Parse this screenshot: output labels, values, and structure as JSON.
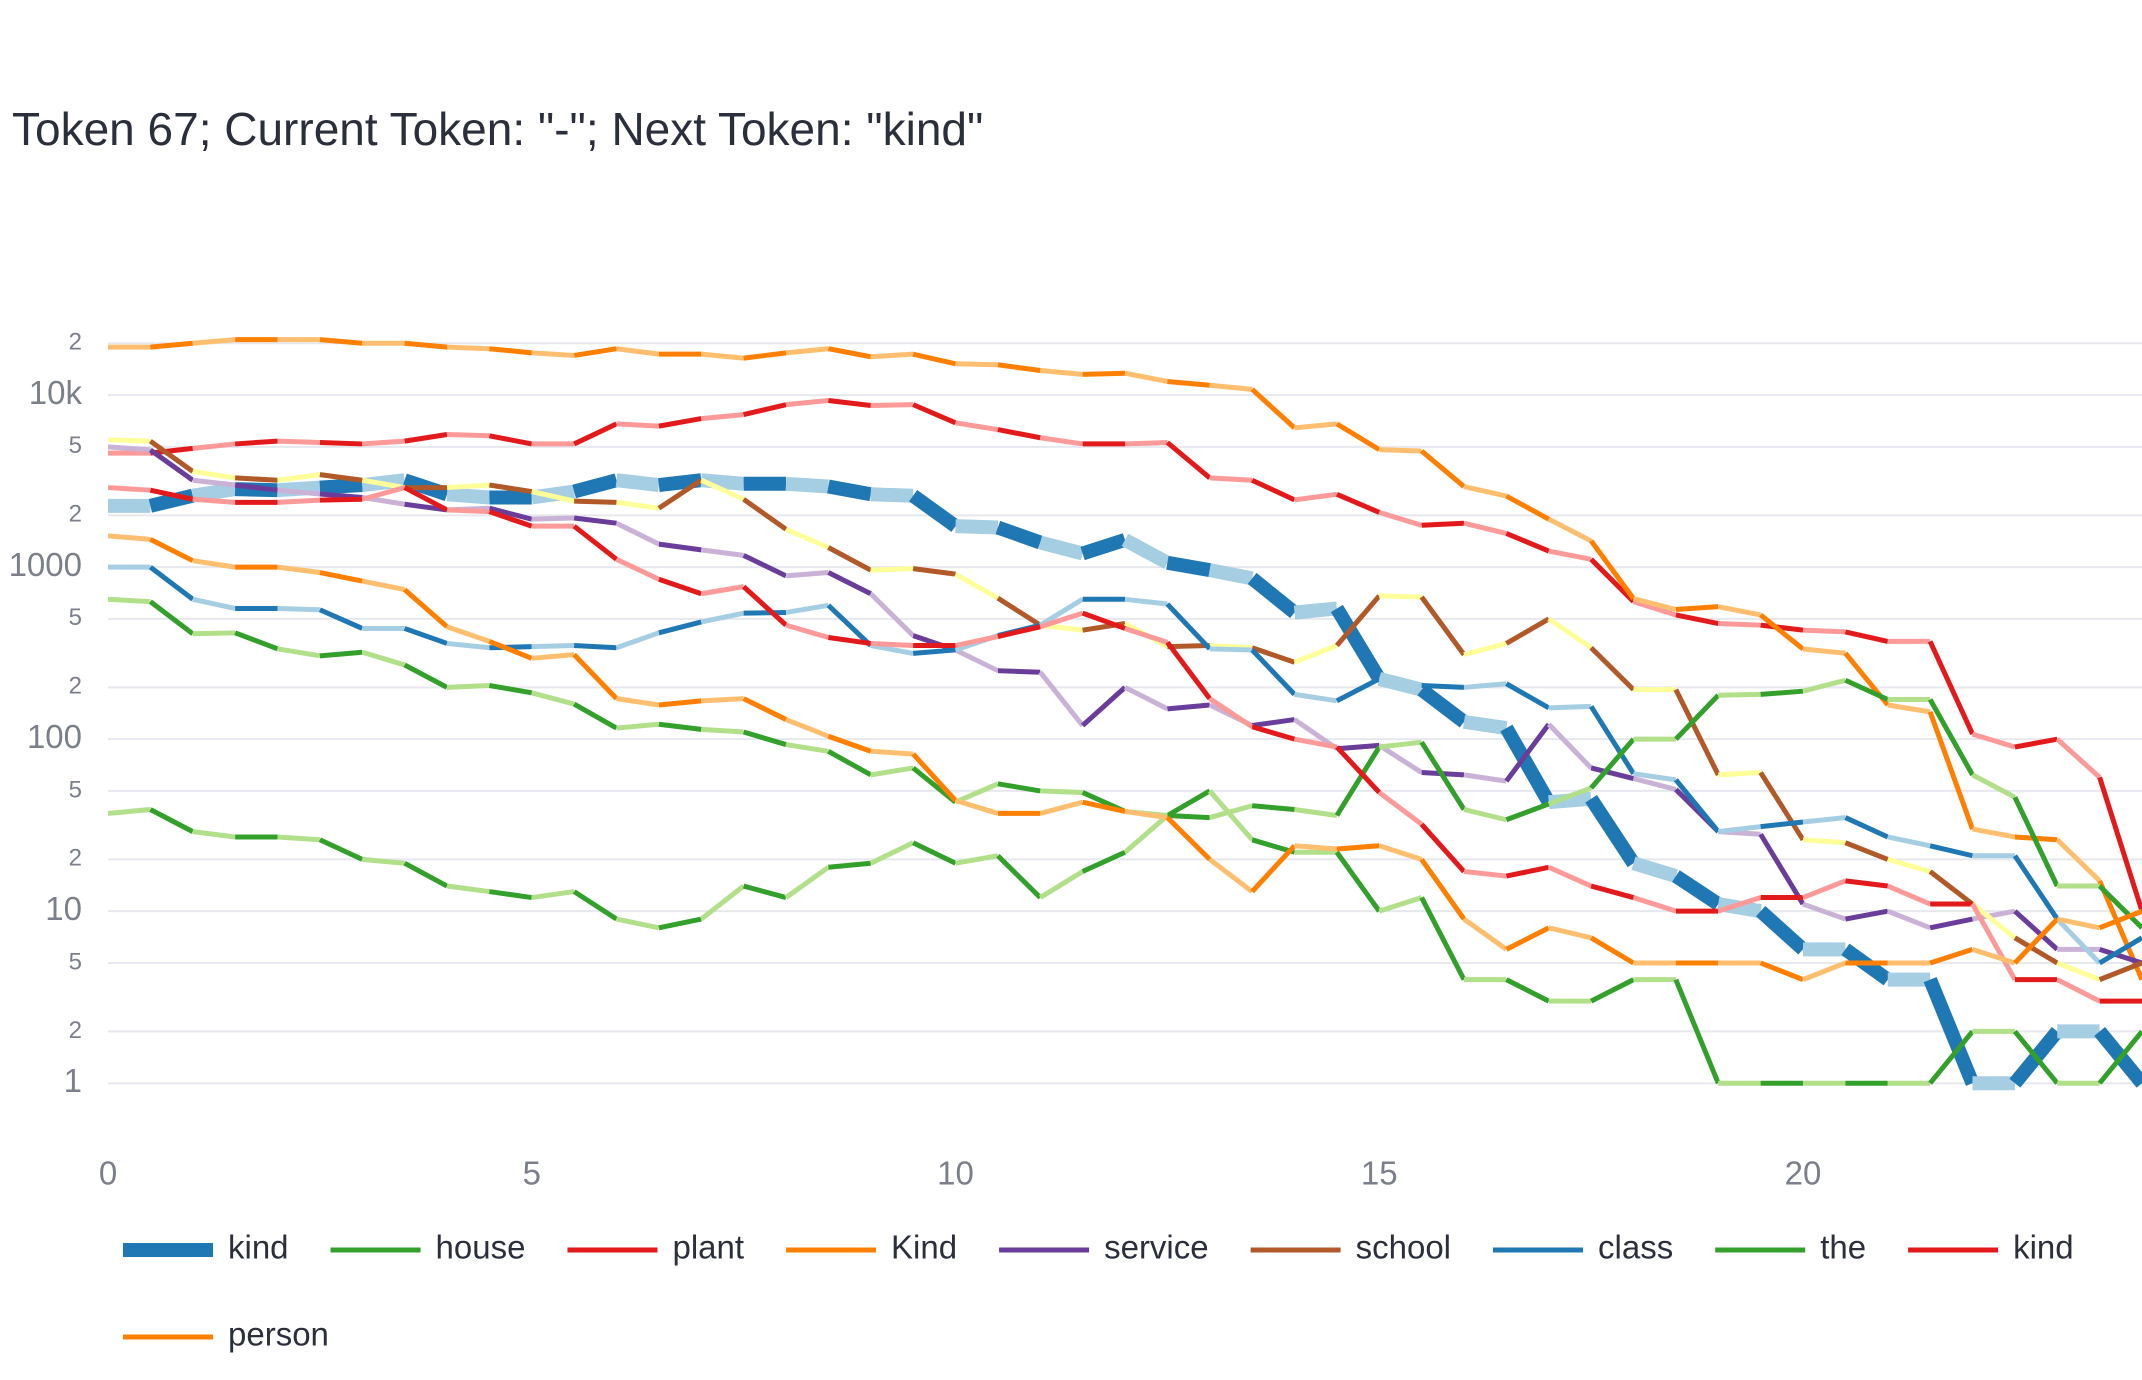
{
  "chart_data": {
    "type": "line",
    "title": "Token 67; Current Token: \"-\"; Next Token: \"kind\"",
    "log_y": true,
    "grid": true,
    "x": [
      0,
      0.5,
      1,
      1.5,
      2,
      2.5,
      3,
      3.5,
      4,
      4.5,
      5,
      5.5,
      6,
      6.5,
      7,
      7.5,
      8,
      8.5,
      9,
      9.5,
      10,
      10.5,
      11,
      11.5,
      12,
      12.5,
      13,
      13.5,
      14,
      14.5,
      15,
      15.5,
      16,
      16.5,
      17,
      17.5,
      18,
      18.5,
      19,
      19.5,
      20,
      20.5,
      21,
      21.5,
      22,
      22.5,
      23,
      23.5,
      24
    ],
    "xlim": [
      0,
      24
    ],
    "xticks": [
      0,
      5,
      10,
      15,
      20
    ],
    "ylim": [
      0.5,
      30000
    ],
    "yticks": [
      1,
      2,
      5,
      10,
      {
        "value": 20,
        "label": "2"
      },
      {
        "value": 50,
        "label": "5"
      },
      100,
      {
        "value": 200,
        "label": "2"
      },
      {
        "value": 500,
        "label": "5"
      },
      1000,
      {
        "value": 2000,
        "label": "2"
      },
      {
        "value": 5000,
        "label": "5"
      },
      {
        "value": 10000,
        "label": "10k"
      },
      {
        "value": 20000,
        "label": "2"
      }
    ],
    "series": [
      {
        "name": "kind",
        "color": "#1f78b4",
        "alt_color": "#a6cee3",
        "values": [
          2270,
          2270,
          2600,
          2840,
          2800,
          2900,
          3000,
          3200,
          2650,
          2540,
          2540,
          2750,
          3200,
          3000,
          3200,
          3050,
          3050,
          2940,
          2650,
          2600,
          1730,
          1700,
          1390,
          1200,
          1440,
          1060,
          960,
          860,
          544,
          575,
          224,
          194,
          126,
          116,
          43,
          45,
          19,
          16,
          11,
          10,
          6,
          6,
          4,
          4,
          1,
          1,
          2,
          2,
          1
        ]
      },
      {
        "name": "house",
        "color": "#33a02c",
        "alt_color": "#b2df8a",
        "values": [
          37,
          39,
          29,
          27,
          27,
          26,
          20,
          19,
          14,
          13,
          12,
          13,
          9,
          8,
          9,
          14,
          12,
          18,
          19,
          25,
          19,
          21,
          12,
          17,
          22,
          36,
          50,
          26,
          22,
          22,
          10,
          12,
          4,
          4,
          3,
          3,
          4,
          4,
          1,
          1,
          1,
          1,
          1,
          1,
          2,
          2,
          1,
          1,
          2
        ]
      },
      {
        "name": "plant",
        "color": "#e31a1c",
        "alt_color": "#fb9a99",
        "values": [
          4600,
          4600,
          4900,
          5200,
          5400,
          5300,
          5200,
          5400,
          5900,
          5800,
          5200,
          5200,
          6800,
          6600,
          7300,
          7700,
          8800,
          9300,
          8700,
          8800,
          6900,
          6300,
          5650,
          5200,
          5200,
          5300,
          3300,
          3200,
          2460,
          2650,
          2080,
          1750,
          1800,
          1570,
          1240,
          1110,
          630,
          527,
          470,
          460,
          430,
          420,
          370,
          370,
          107,
          90,
          100,
          60,
          10
        ]
      },
      {
        "name": "Kind",
        "color": "#ff7f00",
        "alt_color": "#fdbf6f",
        "values": [
          19000,
          19000,
          20000,
          21000,
          21000,
          21000,
          20000,
          20000,
          19000,
          18600,
          17600,
          17000,
          18600,
          17300,
          17300,
          16400,
          17600,
          18600,
          16700,
          17300,
          15200,
          15000,
          13900,
          13200,
          13400,
          12000,
          11400,
          10800,
          6450,
          6800,
          4820,
          4730,
          2940,
          2590,
          1900,
          1420,
          656,
          567,
          589,
          527,
          334,
          316,
          158,
          144,
          30,
          27,
          26,
          15,
          4
        ]
      },
      {
        "name": "service",
        "color": "#6a3d9a",
        "alt_color": "#cab2d6",
        "values": [
          5000,
          4800,
          3200,
          3000,
          2800,
          2660,
          2540,
          2320,
          2150,
          2200,
          1900,
          1930,
          1800,
          1360,
          1260,
          1170,
          890,
          930,
          700,
          400,
          330,
          250,
          245,
          120,
          200,
          150,
          158,
          120,
          130,
          88,
          92,
          64,
          62,
          57,
          122,
          68,
          59,
          51,
          29,
          28,
          11,
          9,
          10,
          8,
          9,
          10,
          6,
          6,
          5
        ]
      },
      {
        "name": "school",
        "color": "#b15928",
        "alt_color": "#ffff99",
        "values": [
          5500,
          5400,
          3600,
          3300,
          3200,
          3450,
          3200,
          2900,
          2900,
          3000,
          2750,
          2420,
          2380,
          2200,
          3200,
          2480,
          1660,
          1300,
          960,
          980,
          910,
          660,
          460,
          430,
          470,
          345,
          350,
          340,
          280,
          350,
          680,
          670,
          310,
          360,
          500,
          340,
          194,
          194,
          62,
          64,
          26,
          25,
          20,
          17,
          11,
          7,
          5,
          4,
          5
        ]
      },
      {
        "name": "class",
        "color": "#1f78b4",
        "alt_color": "#a6cee3",
        "values": [
          1000,
          1000,
          650,
          575,
          575,
          565,
          440,
          440,
          360,
          340,
          345,
          350,
          340,
          415,
          480,
          540,
          545,
          600,
          350,
          315,
          330,
          400,
          460,
          650,
          650,
          610,
          335,
          330,
          182,
          167,
          224,
          205,
          200,
          210,
          152,
          155,
          63,
          58,
          29,
          31,
          33,
          35,
          27,
          24,
          21,
          21,
          9,
          5,
          7
        ]
      },
      {
        "name": "the",
        "color": "#33a02c",
        "alt_color": "#b2df8a",
        "values": [
          650,
          630,
          410,
          415,
          335,
          305,
          320,
          270,
          200,
          205,
          186,
          160,
          116,
          122,
          114,
          110,
          93,
          85,
          62,
          68,
          43,
          55,
          50,
          49,
          38,
          36,
          35,
          41,
          39,
          36,
          90,
          96,
          39,
          34,
          42,
          52,
          100,
          100,
          180,
          182,
          190,
          220,
          170,
          170,
          62,
          46,
          14,
          14,
          8
        ]
      },
      {
        "name": "kind",
        "color": "#e31a1c",
        "alt_color": "#fb9a99",
        "values": [
          2900,
          2800,
          2480,
          2380,
          2380,
          2450,
          2480,
          2900,
          2150,
          2100,
          1730,
          1730,
          1110,
          850,
          700,
          770,
          460,
          390,
          360,
          350,
          350,
          395,
          450,
          540,
          440,
          365,
          172,
          118,
          100,
          90,
          49,
          32,
          17,
          16,
          18,
          14,
          12,
          10,
          10,
          12,
          12,
          15,
          14,
          11,
          11,
          4,
          4,
          3,
          3
        ]
      },
      {
        "name": "person",
        "color": "#ff7f00",
        "alt_color": "#fdbf6f",
        "values": [
          1520,
          1450,
          1090,
          1000,
          1000,
          930,
          830,
          740,
          450,
          370,
          295,
          310,
          172,
          158,
          167,
          172,
          130,
          104,
          85,
          82,
          44,
          37,
          37,
          43,
          38,
          35,
          20,
          13,
          24,
          23,
          24,
          20,
          9,
          6,
          8,
          7,
          5,
          5,
          5,
          5,
          4,
          5,
          5,
          5,
          6,
          5,
          9,
          8,
          10
        ]
      }
    ]
  }
}
